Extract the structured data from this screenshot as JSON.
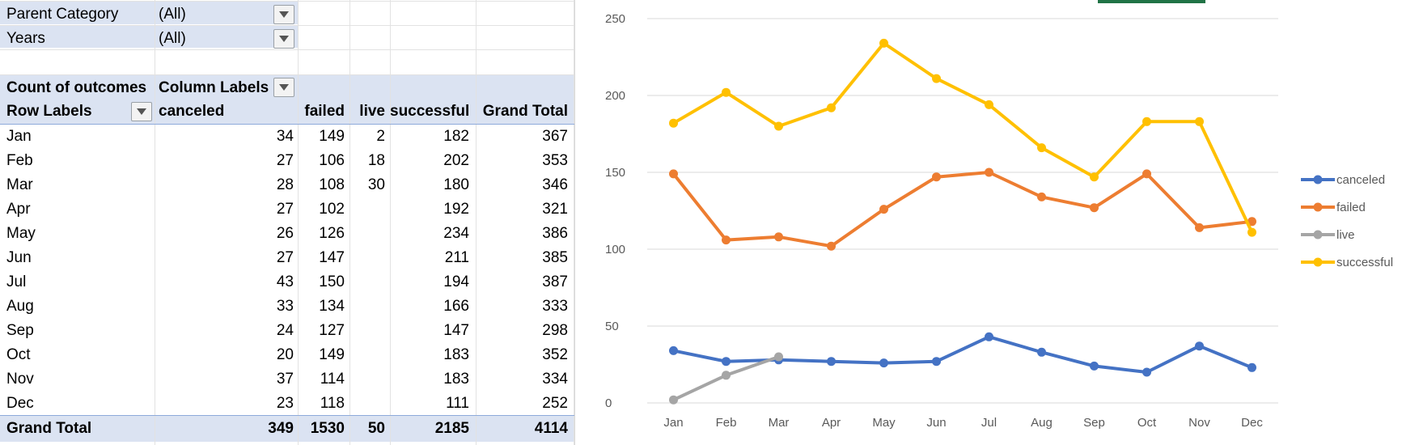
{
  "filters": [
    {
      "label": "Parent Category",
      "value": "(All)"
    },
    {
      "label": "Years",
      "value": "(All)"
    }
  ],
  "pivot": {
    "value_header": "Count of outcomes",
    "column_labels": "Column Labels",
    "row_labels": "Row Labels",
    "columns": [
      "canceled",
      "failed",
      "live",
      "successful",
      "Grand Total"
    ],
    "rows": [
      {
        "label": "Jan",
        "canceled": "34",
        "failed": "149",
        "live": "2",
        "successful": "182",
        "total": "367"
      },
      {
        "label": "Feb",
        "canceled": "27",
        "failed": "106",
        "live": "18",
        "successful": "202",
        "total": "353"
      },
      {
        "label": "Mar",
        "canceled": "28",
        "failed": "108",
        "live": "30",
        "successful": "180",
        "total": "346"
      },
      {
        "label": "Apr",
        "canceled": "27",
        "failed": "102",
        "live": "",
        "successful": "192",
        "total": "321"
      },
      {
        "label": "May",
        "canceled": "26",
        "failed": "126",
        "live": "",
        "successful": "234",
        "total": "386"
      },
      {
        "label": "Jun",
        "canceled": "27",
        "failed": "147",
        "live": "",
        "successful": "211",
        "total": "385"
      },
      {
        "label": "Jul",
        "canceled": "43",
        "failed": "150",
        "live": "",
        "successful": "194",
        "total": "387"
      },
      {
        "label": "Aug",
        "canceled": "33",
        "failed": "134",
        "live": "",
        "successful": "166",
        "total": "333"
      },
      {
        "label": "Sep",
        "canceled": "24",
        "failed": "127",
        "live": "",
        "successful": "147",
        "total": "298"
      },
      {
        "label": "Oct",
        "canceled": "20",
        "failed": "149",
        "live": "",
        "successful": "183",
        "total": "352"
      },
      {
        "label": "Nov",
        "canceled": "37",
        "failed": "114",
        "live": "",
        "successful": "183",
        "total": "334"
      },
      {
        "label": "Dec",
        "canceled": "23",
        "failed": "118",
        "live": "",
        "successful": "111",
        "total": "252"
      }
    ],
    "grand_total": {
      "label": "Grand Total",
      "canceled": "349",
      "failed": "1530",
      "live": "50",
      "successful": "2185",
      "total": "4114"
    }
  },
  "colors": {
    "canceled": "#4472c4",
    "failed": "#ed7d31",
    "live": "#a5a5a5",
    "successful": "#ffc000",
    "pivot_band": "#dbe3f2",
    "accent": "#217346"
  },
  "icons": {
    "filter_dropdown": "dropdown-arrow-icon"
  },
  "chart_data": {
    "type": "line",
    "categories": [
      "Jan",
      "Feb",
      "Mar",
      "Apr",
      "May",
      "Jun",
      "Jul",
      "Aug",
      "Sep",
      "Oct",
      "Nov",
      "Dec"
    ],
    "series": [
      {
        "name": "canceled",
        "values": [
          34,
          27,
          28,
          27,
          26,
          27,
          43,
          33,
          24,
          20,
          37,
          23
        ]
      },
      {
        "name": "failed",
        "values": [
          149,
          106,
          108,
          102,
          126,
          147,
          150,
          134,
          127,
          149,
          114,
          118
        ]
      },
      {
        "name": "live",
        "values": [
          2,
          18,
          30,
          null,
          null,
          null,
          null,
          null,
          null,
          null,
          null,
          null
        ]
      },
      {
        "name": "successful",
        "values": [
          182,
          202,
          180,
          192,
          234,
          211,
          194,
          166,
          147,
          183,
          183,
          111
        ]
      }
    ],
    "y_ticks": [
      "0",
      "50",
      "100",
      "150",
      "200",
      "250"
    ],
    "ylim": [
      0,
      250
    ],
    "grid": true,
    "legend": "right",
    "title": "",
    "xlabel": "",
    "ylabel": ""
  }
}
